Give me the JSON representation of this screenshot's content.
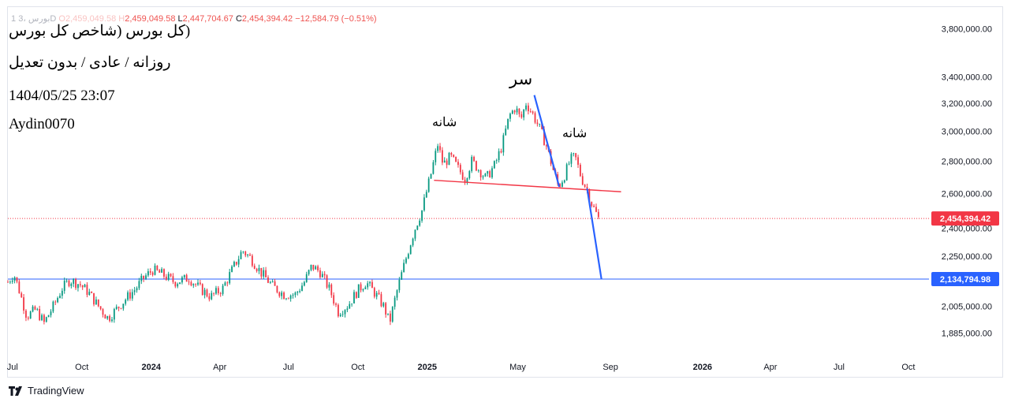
{
  "legend": {
    "symbol": "1 بورس ،3D",
    "open_label": "O",
    "open_value": "2,459,049.58",
    "high_label": "H",
    "high_value": "2,459,049.58",
    "low_label": "L",
    "low_value": "2,447,704.67",
    "close_label": "C",
    "close_value": "2,454,394.42",
    "change": "−12,584.79 (−0.51%)"
  },
  "overlay_text": {
    "title": "(کل بورس (شاخص کل بورس",
    "subtitle": "روزانه / عادی / بدون تعدیل",
    "datetime": "1404/05/25 23:07",
    "author": "Aydin0070"
  },
  "annotations": {
    "head": "سر",
    "left_shoulder": "شانه",
    "right_shoulder": "شانه"
  },
  "branding": "TradingView",
  "chart_data": {
    "type": "candlestick",
    "title": "(کل بورس (شاخص کل بورس",
    "scale": "log",
    "ylim": [
      1800000,
      4000000
    ],
    "x_tick_labels": [
      "Jul",
      "Oct",
      "2024",
      "Apr",
      "Jul",
      "Oct",
      "2025",
      "May",
      "Sep",
      "2026",
      "Apr",
      "Jul",
      "Oct"
    ],
    "x_tick_dates": [
      "2023-07-01",
      "2023-10-01",
      "2024-01-01",
      "2024-04-01",
      "2024-07-01",
      "2024-10-01",
      "2025-01-01",
      "2025-05-01",
      "2025-09-01",
      "2026-01-01",
      "2026-04-01",
      "2026-07-01",
      "2026-10-01"
    ],
    "bold_ticks": [
      "2024",
      "2025",
      "2026"
    ],
    "y_ticks": [
      3800000,
      3400000,
      3200000,
      3000000,
      2800000,
      2600000,
      2400000,
      2250000,
      2005000,
      1885000
    ],
    "y_tick_labels": [
      "3,800,000.00",
      "3,400,000.00",
      "3,200,000.00",
      "3,000,000.00",
      "2,800,000.00",
      "2,600,000.00",
      "2,400,000.00",
      "2,250,000.00",
      "2,005,000.00",
      "1,885,000.00"
    ],
    "price_path": [
      [
        "2023-06-25",
        2120000
      ],
      [
        "2023-07-03",
        2160000
      ],
      [
        "2023-07-10",
        2080000
      ],
      [
        "2023-07-20",
        1960000
      ],
      [
        "2023-08-01",
        1990000
      ],
      [
        "2023-08-12",
        1930000
      ],
      [
        "2023-08-25",
        2010000
      ],
      [
        "2023-09-05",
        2090000
      ],
      [
        "2023-09-15",
        2130000
      ],
      [
        "2023-09-28",
        2110000
      ],
      [
        "2023-10-10",
        2070000
      ],
      [
        "2023-10-22",
        2010000
      ],
      [
        "2023-11-05",
        1950000
      ],
      [
        "2023-11-18",
        2000000
      ],
      [
        "2023-12-01",
        2050000
      ],
      [
        "2023-12-12",
        2090000
      ],
      [
        "2023-12-22",
        2140000
      ],
      [
        "2024-01-03",
        2180000
      ],
      [
        "2024-01-15",
        2160000
      ],
      [
        "2024-02-01",
        2120000
      ],
      [
        "2024-02-20",
        2140000
      ],
      [
        "2024-03-05",
        2090000
      ],
      [
        "2024-03-20",
        2050000
      ],
      [
        "2024-04-05",
        2090000
      ],
      [
        "2024-04-20",
        2200000
      ],
      [
        "2024-05-01",
        2280000
      ],
      [
        "2024-05-12",
        2240000
      ],
      [
        "2024-05-25",
        2170000
      ],
      [
        "2024-06-10",
        2100000
      ],
      [
        "2024-06-25",
        2060000
      ],
      [
        "2024-07-10",
        2060000
      ],
      [
        "2024-07-22",
        2120000
      ],
      [
        "2024-08-01",
        2200000
      ],
      [
        "2024-08-12",
        2170000
      ],
      [
        "2024-08-25",
        2080000
      ],
      [
        "2024-09-05",
        1980000
      ],
      [
        "2024-09-18",
        2010000
      ],
      [
        "2024-10-01",
        2080000
      ],
      [
        "2024-10-12",
        2120000
      ],
      [
        "2024-10-25",
        2060000
      ],
      [
        "2024-11-05",
        2000000
      ],
      [
        "2024-11-12",
        1930000
      ],
      [
        "2024-11-20",
        2050000
      ],
      [
        "2024-12-01",
        2200000
      ],
      [
        "2024-12-15",
        2390000
      ],
      [
        "2024-12-25",
        2500000
      ],
      [
        "2025-01-05",
        2700000
      ],
      [
        "2025-01-15",
        2910000
      ],
      [
        "2025-01-22",
        2780000
      ],
      [
        "2025-02-01",
        2830000
      ],
      [
        "2025-02-10",
        2760000
      ],
      [
        "2025-02-20",
        2690000
      ],
      [
        "2025-03-01",
        2800000
      ],
      [
        "2025-03-10",
        2750000
      ],
      [
        "2025-03-20",
        2690000
      ],
      [
        "2025-04-01",
        2780000
      ],
      [
        "2025-04-10",
        2900000
      ],
      [
        "2025-04-20",
        3110000
      ],
      [
        "2025-04-28",
        3170000
      ],
      [
        "2025-05-05",
        3080000
      ],
      [
        "2025-05-12",
        3200000
      ],
      [
        "2025-05-20",
        3130000
      ],
      [
        "2025-05-30",
        3020000
      ],
      [
        "2025-06-08",
        2900000
      ],
      [
        "2025-06-16",
        2760000
      ],
      [
        "2025-06-24",
        2640000
      ],
      [
        "2025-07-01",
        2700000
      ],
      [
        "2025-07-10",
        2810000
      ],
      [
        "2025-07-16",
        2830000
      ],
      [
        "2025-07-24",
        2700000
      ],
      [
        "2025-08-01",
        2620000
      ],
      [
        "2025-08-08",
        2530000
      ],
      [
        "2025-08-16",
        2454394
      ]
    ],
    "last_price": 2454394.42,
    "last_price_label": "2,454,394.42",
    "support_level": 2134794.98,
    "support_label": "2,134,794.98",
    "neckline": {
      "start": [
        "2025-01-10",
        2680000
      ],
      "end": [
        "2025-09-15",
        2610000
      ]
    },
    "head_line": {
      "start": [
        "2025-05-23",
        3260000
      ],
      "end": [
        "2025-06-25",
        2640000
      ]
    },
    "target_line": {
      "start": [
        "2025-08-01",
        2630000
      ],
      "end": [
        "2025-08-20",
        2134794.98
      ]
    },
    "colors": {
      "up": "#089981",
      "down": "#f23645",
      "last_price": "#f23645",
      "support": "#2962ff",
      "neckline": "#f23645",
      "pattern_lines": "#2962ff"
    }
  }
}
